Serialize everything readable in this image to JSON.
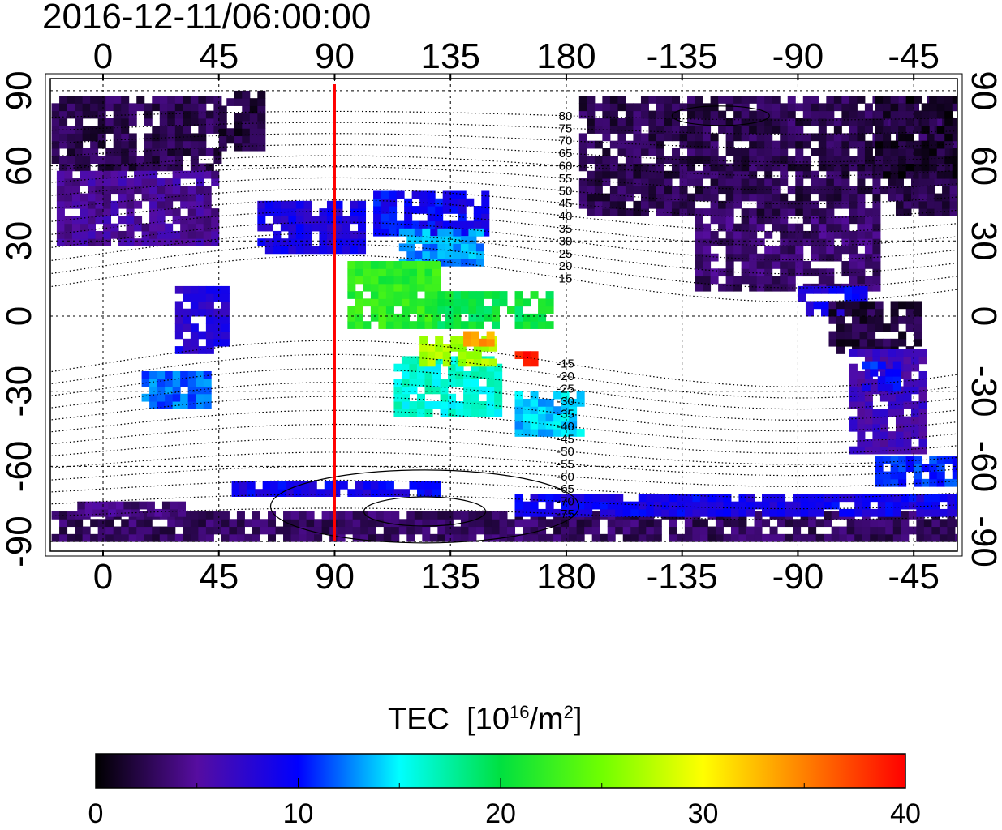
{
  "title": "2016-12-11/06:00:00",
  "chart_data": {
    "type": "heatmap",
    "title": "2016-12-11/06:00:00",
    "projection": "equirectangular",
    "x_ticks": [
      {
        "lon": 0,
        "label": "0"
      },
      {
        "lon": 45,
        "label": "45"
      },
      {
        "lon": 90,
        "label": "90"
      },
      {
        "lon": 135,
        "label": "135"
      },
      {
        "lon": 180,
        "label": "180"
      },
      {
        "lon": 225,
        "label": "-135"
      },
      {
        "lon": 270,
        "label": "-90"
      },
      {
        "lon": 315,
        "label": "-45"
      }
    ],
    "y_ticks": [
      {
        "lat": 90,
        "label": "90"
      },
      {
        "lat": 60,
        "label": "60"
      },
      {
        "lat": 30,
        "label": "30"
      },
      {
        "lat": 0,
        "label": "0"
      },
      {
        "lat": -30,
        "label": "-30"
      },
      {
        "lat": -60,
        "label": "-60"
      },
      {
        "lat": -90,
        "label": "-90"
      }
    ],
    "lon_range": [
      -20,
      332
    ],
    "lat_range": [
      -95,
      95
    ],
    "marker_line": {
      "lon": 90,
      "color": "#ff0000"
    },
    "contour_labels": [
      "80",
      "75",
      "70",
      "65",
      "60",
      "55",
      "50",
      "45",
      "40",
      "35",
      "30",
      "25",
      "20",
      "15",
      "-15",
      "-20",
      "-25",
      "-30",
      "-35",
      "-40",
      "-45",
      "-50",
      "-55",
      "-60",
      "-65",
      "-70",
      "-75"
    ],
    "contour_levels": [
      80,
      75,
      70,
      65,
      60,
      55,
      50,
      45,
      40,
      35,
      30,
      25,
      20,
      15,
      -15,
      -20,
      -25,
      -30,
      -35,
      -40,
      -45,
      -50,
      -55,
      -60,
      -65,
      -70,
      -75
    ],
    "patches": [
      {
        "lon": [
          -20,
          45
        ],
        "lat": [
          58,
          88
        ],
        "tec": 2.5
      },
      {
        "lon": [
          45,
          62
        ],
        "lat": [
          66,
          88
        ],
        "tec": 2
      },
      {
        "lon": [
          -18,
          45
        ],
        "lat": [
          28,
          58
        ],
        "tec": 5
      },
      {
        "lon": [
          185,
          330
        ],
        "lat": [
          40,
          88
        ],
        "tec": 2.5
      },
      {
        "lon": [
          300,
          340
        ],
        "lat": [
          55,
          88
        ],
        "tec": 1.5
      },
      {
        "lon": [
          230,
          300
        ],
        "lat": [
          10,
          40
        ],
        "tec": 3.5
      },
      {
        "lon": [
          270,
          295
        ],
        "lat": [
          0,
          12
        ],
        "tec": 9
      },
      {
        "lon": [
          282,
          318
        ],
        "lat": [
          -15,
          5
        ],
        "tec": 2
      },
      {
        "lon": [
          290,
          320
        ],
        "lat": [
          -55,
          -15
        ],
        "tec": 6
      },
      {
        "lon": [
          295,
          310
        ],
        "lat": [
          -30,
          -18
        ],
        "tec": 10
      },
      {
        "lon": [
          15,
          40
        ],
        "lat": [
          -37,
          -22
        ],
        "tec": 12
      },
      {
        "lon": [
          28,
          48
        ],
        "lat": [
          -15,
          12
        ],
        "tec": 8
      },
      {
        "lon": [
          60,
          100
        ],
        "lat": [
          25,
          45
        ],
        "tec": 8.5
      },
      {
        "lon": [
          105,
          150
        ],
        "lat": [
          32,
          48
        ],
        "tec": 9.5
      },
      {
        "lon": [
          115,
          148
        ],
        "lat": [
          20,
          33
        ],
        "tec": 13
      },
      {
        "lon": [
          95,
          130
        ],
        "lat": [
          -5,
          20
        ],
        "tec": 22
      },
      {
        "lon": [
          130,
          175
        ],
        "lat": [
          -5,
          10
        ],
        "tec": 20
      },
      {
        "lon": [
          113,
          155
        ],
        "lat": [
          -40,
          -18
        ],
        "tec": 16
      },
      {
        "lon": [
          123,
          152
        ],
        "lat": [
          -20,
          -10
        ],
        "tec": 27
      },
      {
        "lon": [
          140,
          150
        ],
        "lat": [
          -12,
          -8
        ],
        "tec": 34
      },
      {
        "lon": [
          160,
          168
        ],
        "lat": [
          -20,
          -15
        ],
        "tec": 39
      },
      {
        "lon": [
          160,
          185
        ],
        "lat": [
          -48,
          -32
        ],
        "tec": 14
      },
      {
        "lon": [
          -20,
          340
        ],
        "lat": [
          -90,
          -80
        ],
        "tec": 3
      },
      {
        "lon": [
          160,
          340
        ],
        "lat": [
          -80,
          -72
        ],
        "tec": 9
      },
      {
        "lon": [
          50,
          130
        ],
        "lat": [
          -72,
          -66
        ],
        "tec": 9
      },
      {
        "lon": [
          300,
          340
        ],
        "lat": [
          -68,
          -58
        ],
        "tec": 11
      },
      {
        "lon": [
          -10,
          30
        ],
        "lat": [
          -80,
          -76
        ],
        "tec": 4
      }
    ],
    "colorbar": {
      "label": "TEC",
      "unit_base": "[10",
      "unit_exp": "16",
      "unit_mid": "/m",
      "unit_exp2": "2",
      "unit_end": "]",
      "range": [
        0,
        40
      ],
      "tick_labels": [
        "0",
        "10",
        "20",
        "30",
        "40"
      ],
      "stops": [
        [
          0,
          "#000000"
        ],
        [
          5,
          "#560da0"
        ],
        [
          10,
          "#0000ff"
        ],
        [
          15,
          "#00ffff"
        ],
        [
          20,
          "#00e040"
        ],
        [
          25,
          "#70ff00"
        ],
        [
          30,
          "#ffff00"
        ],
        [
          35,
          "#ff8000"
        ],
        [
          40,
          "#ff0000"
        ]
      ]
    }
  }
}
